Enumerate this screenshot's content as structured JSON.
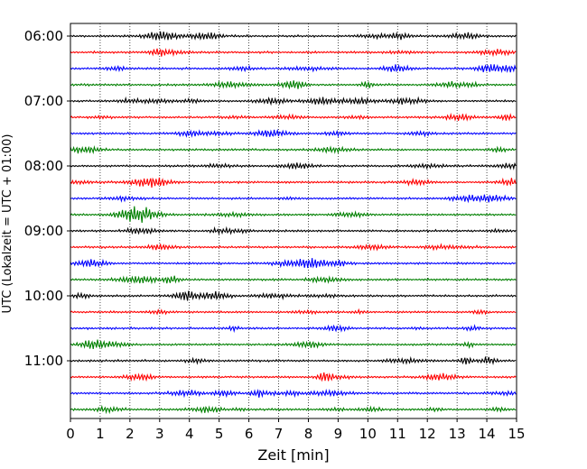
{
  "chart_data": {
    "type": "line",
    "title": "",
    "xlabel": "Zeit  [min]",
    "ylabel": "UTC (Lokalzeit = UTC + 01:00)",
    "xlim": [
      0,
      15
    ],
    "x_ticks": [
      0,
      1,
      2,
      3,
      4,
      5,
      6,
      7,
      8,
      9,
      10,
      11,
      12,
      13,
      14,
      15
    ],
    "y_tick_labels": [
      "06:00",
      "07:00",
      "08:00",
      "09:00",
      "10:00",
      "11:00"
    ],
    "traces_per_tick": 4,
    "grid": "vertical dotted",
    "legend": "none",
    "trace_colors": [
      "#000000",
      "#ff0000",
      "#0000ff",
      "#008000"
    ],
    "traces": [
      {
        "start": "06:00",
        "color": "#000000"
      },
      {
        "start": "06:15",
        "color": "#ff0000"
      },
      {
        "start": "06:30",
        "color": "#0000ff"
      },
      {
        "start": "06:45",
        "color": "#008000"
      },
      {
        "start": "07:00",
        "color": "#000000"
      },
      {
        "start": "07:15",
        "color": "#ff0000"
      },
      {
        "start": "07:30",
        "color": "#0000ff"
      },
      {
        "start": "07:45",
        "color": "#008000"
      },
      {
        "start": "08:00",
        "color": "#000000"
      },
      {
        "start": "08:15",
        "color": "#ff0000"
      },
      {
        "start": "08:30",
        "color": "#0000ff"
      },
      {
        "start": "08:45",
        "color": "#008000"
      },
      {
        "start": "09:00",
        "color": "#000000"
      },
      {
        "start": "09:15",
        "color": "#ff0000"
      },
      {
        "start": "09:30",
        "color": "#0000ff"
      },
      {
        "start": "09:45",
        "color": "#008000"
      },
      {
        "start": "10:00",
        "color": "#000000"
      },
      {
        "start": "10:15",
        "color": "#ff0000"
      },
      {
        "start": "10:30",
        "color": "#0000ff"
      },
      {
        "start": "10:45",
        "color": "#008000"
      },
      {
        "start": "11:00",
        "color": "#000000"
      },
      {
        "start": "11:15",
        "color": "#ff0000"
      },
      {
        "start": "11:30",
        "color": "#0000ff"
      },
      {
        "start": "11:45",
        "color": "#008000"
      }
    ]
  }
}
